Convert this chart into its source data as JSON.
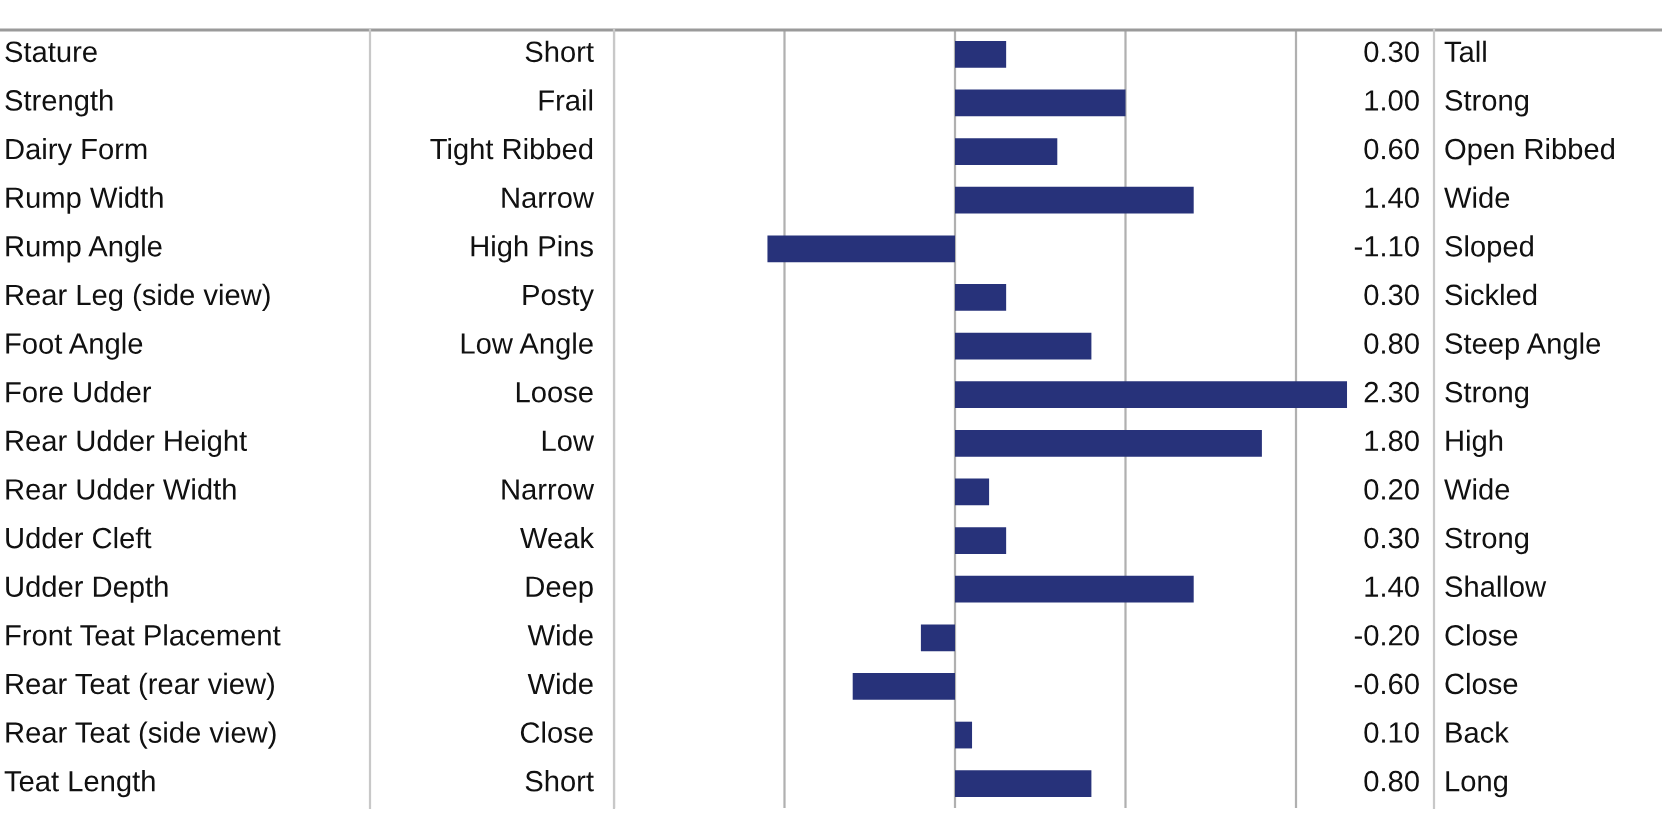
{
  "chart_data": {
    "type": "bar",
    "orientation": "horizontal",
    "categories": [
      "Stature",
      "Strength",
      "Dairy Form",
      "Rump Width",
      "Rump Angle",
      "Rear Leg (side view)",
      "Foot Angle",
      "Fore Udder",
      "Rear Udder Height",
      "Rear Udder Width",
      "Udder Cleft",
      "Udder Depth",
      "Front Teat Placement",
      "Rear Teat (rear view)",
      "Rear Teat (side view)",
      "Teat Length"
    ],
    "values": [
      0.3,
      1.0,
      0.6,
      1.4,
      -1.1,
      0.3,
      0.8,
      2.3,
      1.8,
      0.2,
      0.3,
      1.4,
      -0.2,
      -0.6,
      0.1,
      0.8
    ],
    "value_labels": [
      "0.30",
      "1.00",
      "0.60",
      "1.40",
      "-1.10",
      "0.30",
      "0.80",
      "2.30",
      "1.80",
      "0.20",
      "0.30",
      "1.40",
      "-0.20",
      "-0.60",
      "0.10",
      "0.80"
    ],
    "color": "#27327a",
    "xlim": [
      -2,
      2.3
    ],
    "xticks": [
      {
        "value": -2,
        "label": null
      },
      {
        "value": -1,
        "label": null
      },
      {
        "value": 0,
        "label": null
      },
      {
        "value": 1,
        "label": null
      },
      {
        "value": 2,
        "label": null
      }
    ],
    "grid": "x",
    "annotations": [
      "Short",
      "Tall",
      "Frail",
      "Strong",
      "Tight Ribbed",
      "Open Ribbed",
      "Narrow",
      "Wide",
      "High Pins",
      "Sloped",
      "Posty",
      "Sickled",
      "Low Angle",
      "Steep Angle",
      "Loose",
      "Strong",
      "Low",
      "High",
      "Narrow",
      "Wide",
      "Weak",
      "Strong",
      "Deep",
      "Shallow",
      "Wide",
      "Close",
      "Wide",
      "Close",
      "Close",
      "Back",
      "Short",
      "Long"
    ]
  }
}
